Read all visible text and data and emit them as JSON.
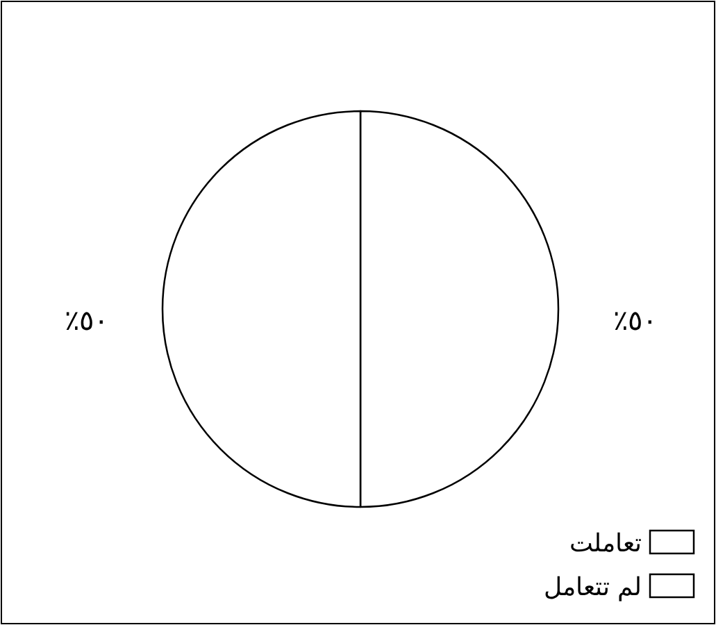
{
  "chart_data": {
    "type": "pie",
    "categories": [
      "تعاملت",
      "لم تتعامل"
    ],
    "values": [
      50,
      50
    ],
    "colors": [
      "#ffffff",
      "#ffffff"
    ],
    "value_labels": [
      "٪٥٠",
      "٪٥٠"
    ],
    "legend": "bottom right"
  }
}
